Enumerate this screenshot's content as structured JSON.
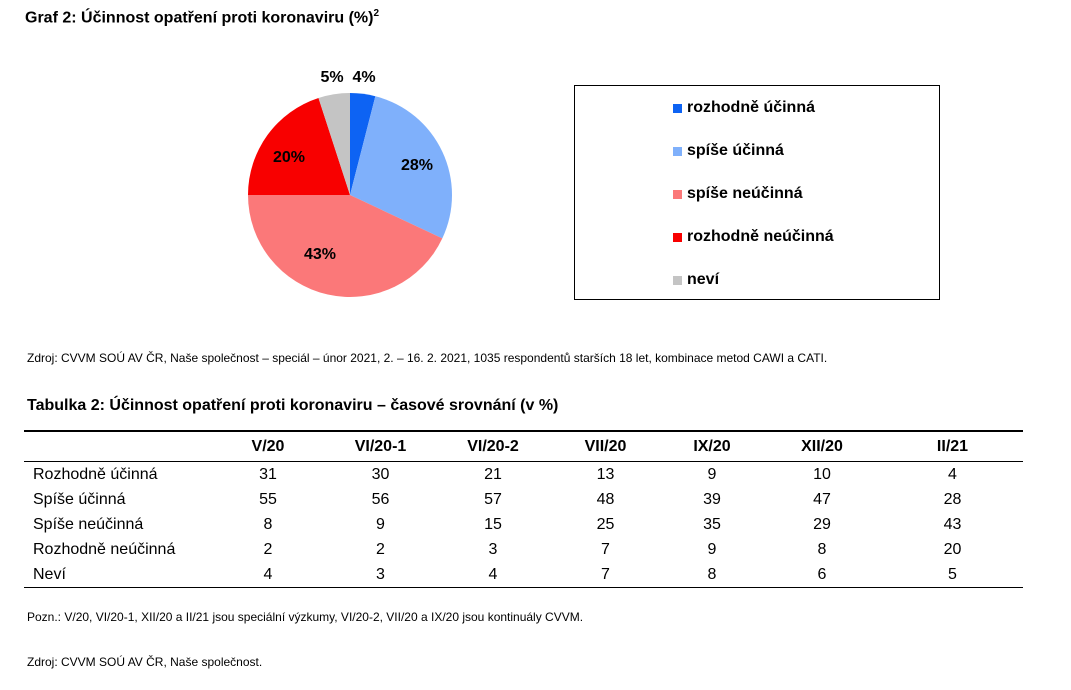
{
  "chart_data": [
    {
      "type": "pie",
      "title": "Graf 2: Účinnost opatření proti koronaviru (%)",
      "title_superscript": "2",
      "categories": [
        "rozhodně účinná",
        "spíše účinná",
        "spíše neúčinná",
        "rozhodně neúčinná",
        "neví"
      ],
      "values": [
        4,
        28,
        43,
        20,
        5
      ],
      "value_labels": [
        "4%",
        "28%",
        "43%",
        "20%",
        "5%"
      ],
      "colors": [
        "#0d63f3",
        "#7fb0fb",
        "#fb7879",
        "#f80000",
        "#c4c4c4"
      ],
      "legend_position": "right"
    },
    {
      "type": "table",
      "title": "Tabulka 2: Účinnost opatření proti koronaviru – časové srovnání (v %)",
      "columns": [
        "V/20",
        "VI/20-1",
        "VI/20-2",
        "VII/20",
        "IX/20",
        "XII/20",
        "II/21"
      ],
      "rows": [
        {
          "label": "Rozhodně účinná",
          "values": [
            "31",
            "30",
            "21",
            "13",
            "9",
            "10",
            "4"
          ]
        },
        {
          "label": "Spíše účinná",
          "values": [
            "55",
            "56",
            "57",
            "48",
            "39",
            "47",
            "28"
          ]
        },
        {
          "label": "Spíše neúčinná",
          "values": [
            "8",
            "9",
            "15",
            "25",
            "35",
            "29",
            "43"
          ]
        },
        {
          "label": "Rozhodně neúčinná",
          "values": [
            "2",
            "2",
            "3",
            "7",
            "9",
            "8",
            "20"
          ]
        },
        {
          "label": "Neví",
          "values": [
            "4",
            "3",
            "4",
            "7",
            "8",
            "6",
            "5"
          ]
        }
      ]
    }
  ],
  "source_chart": "Zdroj: CVVM SOÚ AV ČR, Naše společnost – speciál – únor 2021, 2. – 16. 2. 2021, 1035 respondentů starších 18 let, kombinace metod CAWI a CATI.",
  "note": "Pozn.: V/20, VI/20-1, XII/20 a II/21 jsou speciální výzkumy, VI/20-2, VII/20 a IX/20 jsou kontinuály CVVM.",
  "source_table": "Zdroj: CVVM SOÚ AV ČR, Naše společnost."
}
